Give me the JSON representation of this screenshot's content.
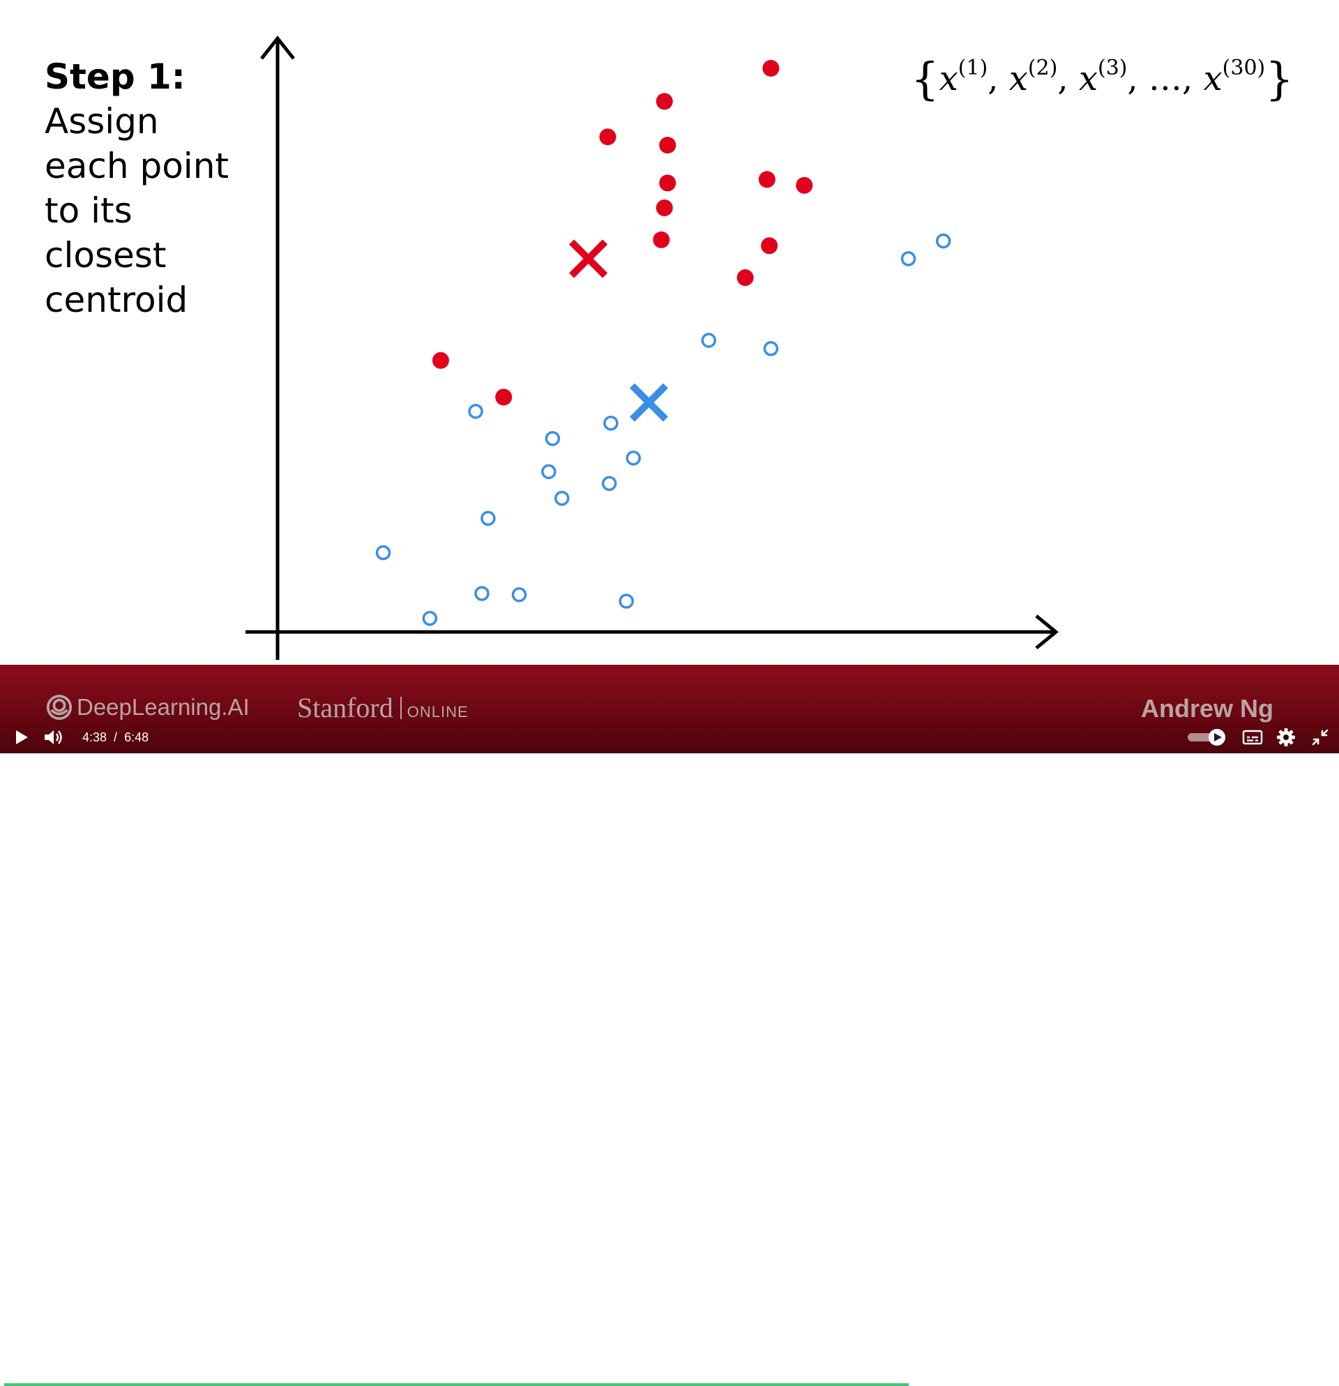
{
  "slide": {
    "step_label": "Step 1:",
    "step_description": "Assign each point to its closest centroid",
    "set_notation": {
      "open": "{",
      "close": "}",
      "variable": "x",
      "superscripts": [
        "(1)",
        "(2)",
        "(3)",
        "(30)"
      ],
      "separator": ",",
      "ellipsis": "…"
    }
  },
  "chart_data": {
    "type": "scatter",
    "title": "",
    "xlabel": "",
    "ylabel": "",
    "xlim": [
      0,
      100
    ],
    "ylim": [
      0,
      100
    ],
    "grid": false,
    "series": [
      {
        "color": "#e0001b",
        "marker": "filled-circle",
        "points": [
          [
            63.5,
            95.3
          ],
          [
            49.8,
            89.7
          ],
          [
            42.5,
            83.7
          ],
          [
            50.2,
            82.3
          ],
          [
            63.0,
            76.5
          ],
          [
            67.8,
            75.5
          ],
          [
            50.2,
            75.9
          ],
          [
            49.8,
            71.7
          ],
          [
            49.4,
            66.3
          ],
          [
            63.3,
            65.3
          ],
          [
            60.2,
            59.9
          ],
          [
            21.0,
            45.9
          ],
          [
            29.1,
            39.7
          ]
        ]
      },
      {
        "color": "#3a8ee6",
        "marker": "hollow-circle",
        "points": [
          [
            85.7,
            66.1
          ],
          [
            81.2,
            63.1
          ],
          [
            55.5,
            49.3
          ],
          [
            63.5,
            47.9
          ],
          [
            25.5,
            37.3
          ],
          [
            35.4,
            32.7
          ],
          [
            42.9,
            35.3
          ],
          [
            45.8,
            29.4
          ],
          [
            34.9,
            27.1
          ],
          [
            42.7,
            25.1
          ],
          [
            36.6,
            22.6
          ],
          [
            27.1,
            19.2
          ],
          [
            13.6,
            13.4
          ],
          [
            26.3,
            6.5
          ],
          [
            31.1,
            6.3
          ],
          [
            44.9,
            5.2
          ],
          [
            19.6,
            2.3
          ]
        ]
      }
    ],
    "centroids": [
      {
        "x": 40.0,
        "y": 63.1,
        "color": "#e0001b",
        "marker": "x"
      },
      {
        "x": 47.8,
        "y": 38.8,
        "color": "#3a8ee6",
        "marker": "x"
      }
    ]
  },
  "banner": {
    "deeplearning_label": "DeepLearning.AI",
    "stanford_label": "Stanford",
    "online_label": "ONLINE",
    "author_label": "Andrew Ng"
  },
  "player": {
    "current_time": "4:38",
    "separator": "/",
    "duration": "6:48",
    "progress_fraction": 0.68,
    "progress_color": "#3ec96e",
    "icons": {
      "play": "play-icon",
      "volume": "volume-icon",
      "autoplay": "autoplay-toggle-icon",
      "captions": "captions-icon",
      "settings": "gear-icon",
      "exit_fullscreen": "exit-fullscreen-icon"
    }
  }
}
